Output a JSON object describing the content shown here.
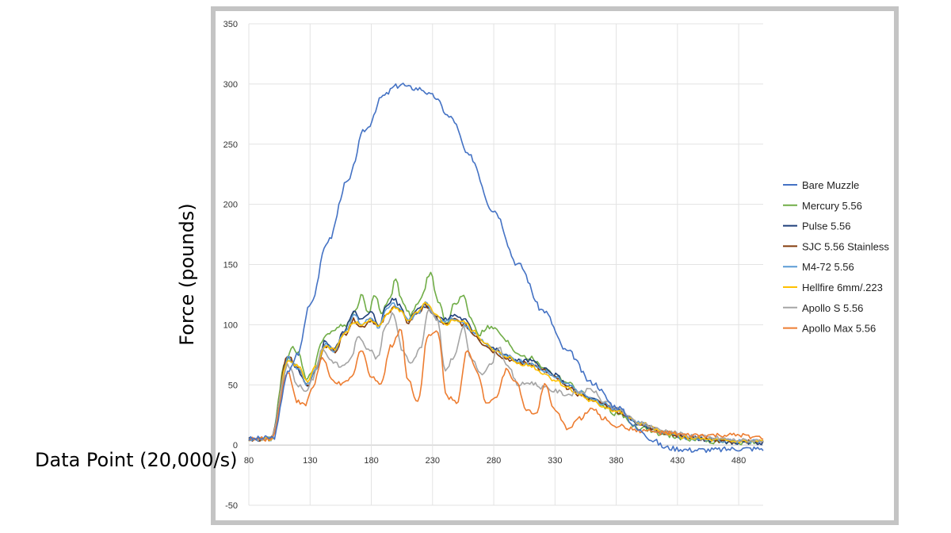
{
  "chart_data": {
    "type": "line",
    "ylabel": "Force (pounds)",
    "xlabel": "Data Point (20,000/s)",
    "xlim": [
      80,
      500
    ],
    "ylim": [
      -50,
      350
    ],
    "xticks": [
      80,
      130,
      180,
      230,
      280,
      330,
      380,
      430,
      480
    ],
    "yticks": [
      -50,
      0,
      50,
      100,
      150,
      200,
      250,
      300,
      350
    ],
    "grid": true,
    "legend_position": "right",
    "series": [
      {
        "name": "Bare Muzzle",
        "color": "#4472C4",
        "x": [
          80,
          100,
          112,
          120,
          130,
          145,
          160,
          175,
          190,
          200,
          205,
          210,
          220,
          230,
          245,
          260,
          280,
          300,
          320,
          340,
          360,
          380,
          400,
          410,
          420,
          430,
          440,
          460,
          480,
          500
        ],
        "y": [
          5,
          6,
          60,
          76,
          118,
          170,
          218,
          262,
          290,
          298,
          300,
          297,
          296,
          290,
          272,
          240,
          195,
          150,
          112,
          78,
          52,
          32,
          12,
          4,
          -2,
          -3,
          -4,
          -4,
          -3,
          -3
        ]
      },
      {
        "name": "Mercury 5.56",
        "color": "#70AD47",
        "x": [
          80,
          98,
          110,
          115,
          120,
          127,
          132,
          140,
          150,
          160,
          166,
          172,
          178,
          183,
          188,
          195,
          200,
          205,
          212,
          220,
          228,
          235,
          242,
          248,
          255,
          262,
          268,
          275,
          282,
          290,
          300,
          310,
          320,
          330,
          340,
          350,
          360,
          370,
          380,
          400,
          420,
          440,
          460,
          480,
          500
        ],
        "y": [
          5,
          5,
          68,
          82,
          76,
          56,
          62,
          88,
          97,
          100,
          110,
          124,
          110,
          125,
          110,
          122,
          138,
          120,
          108,
          120,
          143,
          118,
          100,
          118,
          124,
          104,
          92,
          98,
          96,
          86,
          76,
          72,
          65,
          58,
          52,
          44,
          38,
          32,
          26,
          14,
          8,
          5,
          3,
          2,
          2
        ]
      },
      {
        "name": "Pulse 5.56",
        "color": "#1F3F7A",
        "x": [
          80,
          98,
          112,
          120,
          128,
          135,
          142,
          150,
          158,
          166,
          172,
          180,
          186,
          193,
          198,
          203,
          210,
          218,
          225,
          232,
          240,
          248,
          256,
          264,
          272,
          280,
          290,
          300,
          310,
          320,
          330,
          340,
          350,
          360,
          370,
          380,
          400,
          420,
          440,
          460,
          480,
          500
        ],
        "y": [
          5,
          5,
          72,
          62,
          48,
          62,
          86,
          80,
          95,
          112,
          104,
          110,
          100,
          116,
          122,
          116,
          104,
          114,
          116,
          108,
          104,
          108,
          104,
          94,
          86,
          80,
          74,
          70,
          70,
          64,
          58,
          50,
          42,
          38,
          34,
          30,
          16,
          10,
          6,
          4,
          2,
          2
        ]
      },
      {
        "name": "SJC 5.56 Stainless",
        "color": "#843C0C",
        "x": [
          80,
          98,
          112,
          120,
          128,
          135,
          142,
          150,
          158,
          166,
          172,
          180,
          186,
          193,
          198,
          203,
          210,
          218,
          225,
          232,
          240,
          248,
          256,
          264,
          272,
          280,
          290,
          300,
          310,
          320,
          330,
          340,
          350,
          360,
          370,
          380,
          400,
          420,
          440,
          460,
          480,
          500
        ],
        "y": [
          5,
          5,
          74,
          64,
          50,
          64,
          82,
          78,
          92,
          104,
          98,
          104,
          98,
          108,
          116,
          112,
          102,
          110,
          116,
          106,
          100,
          104,
          100,
          92,
          84,
          78,
          72,
          68,
          68,
          62,
          56,
          48,
          42,
          38,
          34,
          28,
          18,
          10,
          6,
          4,
          3,
          3
        ]
      },
      {
        "name": "M4-72 5.56",
        "color": "#5B9BD5",
        "x": [
          80,
          98,
          112,
          120,
          128,
          135,
          142,
          150,
          158,
          166,
          172,
          180,
          186,
          193,
          198,
          203,
          210,
          218,
          225,
          232,
          240,
          248,
          256,
          264,
          272,
          280,
          290,
          300,
          310,
          320,
          330,
          340,
          350,
          360,
          370,
          380,
          400,
          420,
          440,
          460,
          480,
          500
        ],
        "y": [
          5,
          5,
          72,
          64,
          50,
          64,
          84,
          78,
          94,
          108,
          100,
          106,
          98,
          112,
          118,
          114,
          104,
          110,
          118,
          106,
          102,
          106,
          100,
          94,
          86,
          80,
          74,
          70,
          68,
          62,
          56,
          50,
          44,
          38,
          34,
          30,
          18,
          10,
          6,
          4,
          3,
          3
        ]
      },
      {
        "name": "Hellfire 6mm/.223",
        "color": "#FFC000",
        "x": [
          80,
          98,
          112,
          120,
          128,
          135,
          142,
          150,
          158,
          166,
          172,
          180,
          186,
          193,
          198,
          203,
          210,
          218,
          225,
          232,
          240,
          248,
          256,
          264,
          272,
          280,
          290,
          300,
          310,
          320,
          330,
          340,
          350,
          360,
          370,
          380,
          400,
          420,
          440,
          460,
          480,
          500
        ],
        "y": [
          5,
          5,
          70,
          66,
          52,
          66,
          82,
          80,
          92,
          102,
          100,
          104,
          98,
          110,
          114,
          112,
          104,
          110,
          118,
          108,
          100,
          104,
          102,
          94,
          86,
          78,
          74,
          68,
          66,
          60,
          54,
          48,
          42,
          36,
          32,
          28,
          18,
          10,
          6,
          4,
          3,
          3
        ]
      },
      {
        "name": "Apollo S 5.56",
        "color": "#A5A5A5",
        "x": [
          80,
          98,
          112,
          120,
          126,
          132,
          140,
          148,
          155,
          162,
          170,
          178,
          185,
          192,
          198,
          205,
          212,
          220,
          227,
          234,
          240,
          248,
          255,
          262,
          270,
          277,
          284,
          292,
          300,
          310,
          320,
          330,
          340,
          350,
          360,
          370,
          380,
          400,
          420,
          440,
          460,
          480,
          500
        ],
        "y": [
          5,
          5,
          66,
          50,
          44,
          55,
          80,
          70,
          65,
          70,
          90,
          80,
          72,
          100,
          110,
          80,
          68,
          80,
          112,
          104,
          62,
          74,
          98,
          70,
          60,
          66,
          82,
          64,
          50,
          52,
          48,
          45,
          42,
          44,
          46,
          36,
          30,
          18,
          12,
          8,
          6,
          4,
          4
        ]
      },
      {
        "name": "Apollo Max 5.56",
        "color": "#ED7D31",
        "x": [
          80,
          98,
          112,
          120,
          126,
          132,
          140,
          148,
          156,
          164,
          172,
          180,
          188,
          196,
          204,
          210,
          218,
          226,
          234,
          242,
          250,
          258,
          266,
          274,
          282,
          290,
          298,
          306,
          314,
          322,
          330,
          340,
          350,
          360,
          370,
          380,
          400,
          420,
          440,
          460,
          480,
          500
        ],
        "y": [
          5,
          5,
          60,
          36,
          33,
          48,
          72,
          54,
          50,
          56,
          80,
          56,
          52,
          82,
          96,
          54,
          36,
          90,
          94,
          40,
          36,
          78,
          62,
          36,
          40,
          62,
          54,
          30,
          26,
          50,
          28,
          14,
          22,
          30,
          22,
          16,
          12,
          10,
          8,
          8,
          8,
          6
        ]
      }
    ]
  }
}
